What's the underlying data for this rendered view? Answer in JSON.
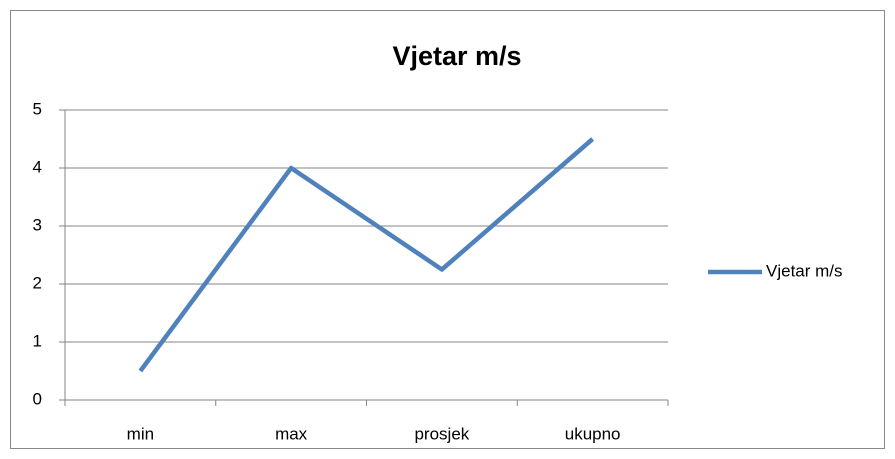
{
  "chart_data": {
    "type": "line",
    "title": "Vjetar m/s",
    "categories": [
      "min",
      "max",
      "prosjek",
      "ukupno"
    ],
    "series": [
      {
        "name": "Vjetar m/s",
        "color": "#4f81bd",
        "values": [
          0.5,
          4,
          2.25,
          4.5
        ]
      }
    ],
    "ylim": [
      0,
      5
    ],
    "yticks": [
      0,
      1,
      2,
      3,
      4,
      5
    ],
    "grid": true,
    "legend": "right"
  }
}
